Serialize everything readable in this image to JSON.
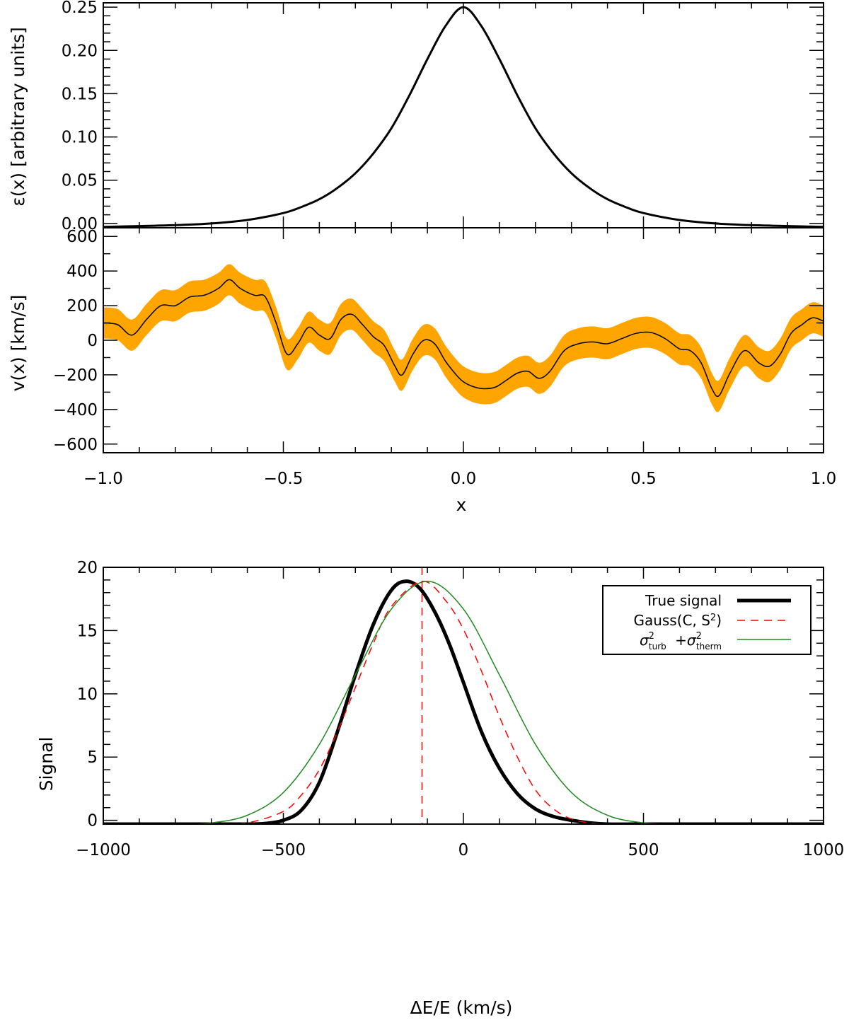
{
  "chart_data": [
    {
      "type": "line",
      "title": "",
      "xlabel": "",
      "ylabel": "ε(x) [arbitrary units]",
      "xlim": [
        -1.0,
        1.0
      ],
      "ylim": [
        -0.005,
        0.255
      ],
      "ytick_labels": [
        "0.00",
        "0.05",
        "0.10",
        "0.15",
        "0.20",
        "0.25"
      ],
      "ytick_values": [
        0,
        0.05,
        0.1,
        0.15,
        0.2,
        0.25
      ],
      "series": [
        {
          "name": "ε(x)",
          "color": "#000000",
          "x": [
            -1.0,
            -0.9,
            -0.8,
            -0.7,
            -0.6,
            -0.5,
            -0.45,
            -0.4,
            -0.35,
            -0.3,
            -0.25,
            -0.2,
            -0.15,
            -0.1,
            -0.05,
            0.0,
            0.05,
            0.1,
            0.15,
            0.2,
            0.25,
            0.3,
            0.35,
            0.4,
            0.45,
            0.5,
            0.6,
            0.7,
            0.8,
            0.9,
            1.0
          ],
          "values": [
            -0.004,
            -0.003,
            -0.002,
            0.0,
            0.004,
            0.012,
            0.019,
            0.028,
            0.041,
            0.058,
            0.081,
            0.11,
            0.148,
            0.19,
            0.228,
            0.25,
            0.228,
            0.19,
            0.148,
            0.11,
            0.081,
            0.058,
            0.041,
            0.028,
            0.019,
            0.012,
            0.004,
            0.0,
            -0.002,
            -0.003,
            -0.004
          ]
        }
      ]
    },
    {
      "type": "line",
      "title": "",
      "xlabel": "x",
      "ylabel": "v(x) [km/s]",
      "xlim": [
        -1.0,
        1.0
      ],
      "ylim": [
        -650,
        650
      ],
      "ytick_labels": [
        "−600",
        "−400",
        "−200",
        "0",
        "200",
        "400",
        "600"
      ],
      "ytick_values": [
        -600,
        -400,
        -200,
        0,
        200,
        400,
        600
      ],
      "xtick_labels": [
        "−1.0",
        "−0.5",
        "0.0",
        "0.5",
        "1.0"
      ],
      "xtick_values": [
        -1.0,
        -0.5,
        0.0,
        0.5,
        1.0
      ],
      "band_color": "#ffa500",
      "series": [
        {
          "name": "v(x)",
          "color": "#000000",
          "x": [
            -1.0,
            -0.96,
            -0.92,
            -0.88,
            -0.84,
            -0.8,
            -0.76,
            -0.72,
            -0.68,
            -0.65,
            -0.62,
            -0.58,
            -0.55,
            -0.52,
            -0.49,
            -0.46,
            -0.43,
            -0.4,
            -0.37,
            -0.34,
            -0.31,
            -0.28,
            -0.25,
            -0.22,
            -0.19,
            -0.17,
            -0.14,
            -0.11,
            -0.08,
            -0.05,
            -0.02,
            0.0,
            0.03,
            0.06,
            0.09,
            0.12,
            0.15,
            0.18,
            0.21,
            0.24,
            0.28,
            0.32,
            0.36,
            0.4,
            0.44,
            0.48,
            0.52,
            0.56,
            0.6,
            0.63,
            0.66,
            0.69,
            0.71,
            0.74,
            0.78,
            0.82,
            0.85,
            0.88,
            0.91,
            0.94,
            0.97,
            1.0
          ],
          "values": [
            100,
            90,
            30,
            120,
            200,
            200,
            250,
            260,
            300,
            350,
            300,
            260,
            250,
            100,
            -80,
            -20,
            75,
            30,
            10,
            120,
            150,
            90,
            20,
            -30,
            -150,
            -200,
            -80,
            0,
            -20,
            -120,
            -200,
            -240,
            -270,
            -280,
            -270,
            -230,
            -190,
            -180,
            -220,
            -180,
            -60,
            -20,
            -10,
            -20,
            10,
            40,
            45,
            10,
            -50,
            -60,
            -130,
            -280,
            -320,
            -190,
            -60,
            -130,
            -150,
            -80,
            40,
            90,
            130,
            110
          ],
          "band_halfwidth": 90
        }
      ]
    },
    {
      "type": "line",
      "title": "",
      "xlabel": "ΔE/E (km/s)",
      "ylabel": "Signal",
      "xlim": [
        -1000,
        1000
      ],
      "ylim": [
        -0.3,
        20
      ],
      "ytick_labels": [
        "0",
        "5",
        "10",
        "15",
        "20"
      ],
      "ytick_values": [
        0,
        5,
        10,
        15,
        20
      ],
      "xtick_labels": [
        "−1000",
        "−500",
        "0",
        "500",
        "1000"
      ],
      "xtick_values": [
        -1000,
        -500,
        0,
        500,
        1000
      ],
      "vline": {
        "x": -115,
        "color": "#ff0000"
      },
      "legend": {
        "position": "top-right",
        "entries": [
          "True signal",
          "Gauss(C, S²)",
          "σ²turb +σ²therm"
        ]
      },
      "series": [
        {
          "name": "True signal",
          "color": "#000000",
          "style": "solid-thick",
          "x": [
            -1000,
            -700,
            -600,
            -550,
            -500,
            -450,
            -400,
            -350,
            -300,
            -250,
            -200,
            -160,
            -120,
            -80,
            -40,
            0,
            50,
            100,
            150,
            200,
            250,
            300,
            350,
            400,
            500,
            700,
            1000
          ],
          "values": [
            -0.3,
            -0.3,
            -0.3,
            -0.25,
            0.0,
            0.8,
            3.0,
            7.0,
            11.5,
            15.5,
            18.2,
            18.9,
            18.3,
            16.5,
            14.0,
            10.9,
            7.0,
            4.1,
            2.1,
            0.9,
            0.3,
            0.0,
            -0.2,
            -0.3,
            -0.3,
            -0.3,
            -0.3
          ]
        },
        {
          "name": "Gauss(C, S²)",
          "color": "#ff0000",
          "style": "dashed",
          "x": [
            -1000,
            -700,
            -600,
            -500,
            -450,
            -400,
            -350,
            -300,
            -250,
            -200,
            -115,
            -50,
            0,
            50,
            100,
            150,
            200,
            250,
            300,
            350,
            400,
            500,
            700,
            1000
          ],
          "values": [
            -0.3,
            -0.3,
            -0.2,
            0.7,
            2.0,
            4.0,
            7.0,
            10.5,
            14.0,
            16.9,
            18.9,
            17.4,
            15.1,
            11.8,
            8.2,
            5.0,
            2.4,
            0.9,
            0.1,
            -0.2,
            -0.3,
            -0.3,
            -0.3,
            -0.3
          ]
        },
        {
          "name": "σ²turb +σ²therm",
          "color": "#228b22",
          "style": "solid",
          "x": [
            -1000,
            -800,
            -700,
            -600,
            -500,
            -400,
            -300,
            -200,
            -100,
            0,
            100,
            200,
            300,
            400,
            500,
            600,
            700,
            800,
            1000
          ],
          "values": [
            -0.3,
            -0.3,
            -0.2,
            0.4,
            2.2,
            6.0,
            11.5,
            16.7,
            18.9,
            16.7,
            11.5,
            6.0,
            2.2,
            0.4,
            -0.2,
            -0.3,
            -0.3,
            -0.3,
            -0.3
          ]
        }
      ]
    }
  ]
}
